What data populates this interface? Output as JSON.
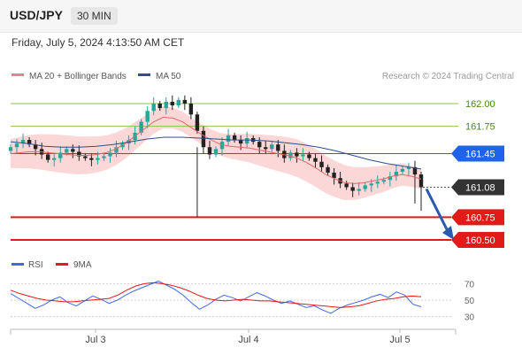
{
  "header": {
    "symbol": "USD/JPY",
    "timeframe": "30 MIN"
  },
  "timestamp": "Friday, July 5, 2024 4:13:50 AM CET",
  "legend": {
    "ma20_label": "MA 20 + Bollinger Bands",
    "ma50_label": "MA 50",
    "ma20_color": "#f08080",
    "ma50_color": "#2e4f8f"
  },
  "credit": "Research © 2024 Trading Central",
  "colors": {
    "up": "#26a69a",
    "down": "#222222",
    "band": "#f9caca",
    "resistance_line": "#8bc34a",
    "pivot_line": "#1e63e9",
    "support_line": "#e11a1a",
    "arrow": "#2a5ab0",
    "rsi": "#4169e1",
    "rsi_ma": "#e11a1a"
  },
  "chart_data": [
    {
      "type": "line",
      "subtype": "candlestick",
      "title": "",
      "x_ticks": [
        "Jul 3",
        "Jul 4",
        "Jul 5"
      ],
      "ylim": [
        160.4,
        162.15
      ],
      "series": [
        {
          "name": "USD/JPY",
          "close_approx": [
            161.52,
            161.56,
            161.6,
            161.55,
            161.5,
            161.44,
            161.38,
            161.4,
            161.46,
            161.5,
            161.47,
            161.42,
            161.4,
            161.38,
            161.4,
            161.42,
            161.46,
            161.52,
            161.56,
            161.6,
            161.68,
            161.8,
            161.92,
            162.0,
            161.95,
            162.02,
            161.98,
            162.04,
            162.0,
            161.88,
            161.7,
            161.52,
            161.44,
            161.5,
            161.58,
            161.65,
            161.6,
            161.56,
            161.62,
            161.58,
            161.52,
            161.5,
            161.55,
            161.48,
            161.4,
            161.46,
            161.42,
            161.44,
            161.4,
            161.36,
            161.3,
            161.24,
            161.18,
            161.12,
            161.08,
            161.04,
            161.06,
            161.1,
            161.12,
            161.14,
            161.16,
            161.2,
            161.25,
            161.28,
            161.3,
            161.22,
            161.08
          ]
        },
        {
          "name": "MA 20",
          "values_approx": [
            161.45,
            161.46,
            161.47,
            161.47,
            161.46,
            161.45,
            161.44,
            161.43,
            161.43,
            161.44,
            161.46,
            161.5,
            161.56,
            161.64,
            161.72,
            161.8,
            161.85,
            161.84,
            161.8,
            161.73,
            161.66,
            161.6,
            161.55,
            161.53,
            161.52,
            161.51,
            161.49,
            161.47,
            161.45,
            161.43,
            161.4,
            161.35,
            161.29,
            161.22,
            161.17,
            161.13,
            161.12,
            161.13,
            161.15,
            161.17,
            161.2,
            161.22,
            161.2,
            161.17
          ]
        },
        {
          "name": "MA 50",
          "values_approx": [
            161.58,
            161.56,
            161.53,
            161.52,
            161.52,
            161.53,
            161.55,
            161.58,
            161.61,
            161.63,
            161.63,
            161.62,
            161.61,
            161.6,
            161.6,
            161.59,
            161.57,
            161.55,
            161.52,
            161.48,
            161.43,
            161.38,
            161.34,
            161.31,
            161.28
          ]
        }
      ],
      "price_levels": [
        {
          "label": "162.00",
          "value": 162.0,
          "role": "resistance"
        },
        {
          "label": "161.75",
          "value": 161.75,
          "role": "resistance"
        },
        {
          "label": "161.45",
          "value": 161.45,
          "role": "pivot"
        },
        {
          "label": "161.08",
          "value": 161.08,
          "role": "last"
        },
        {
          "label": "160.75",
          "value": 160.75,
          "role": "support"
        },
        {
          "label": "160.50",
          "value": 160.5,
          "role": "support"
        }
      ]
    },
    {
      "type": "line",
      "title": "",
      "ylim": [
        20,
        80
      ],
      "y_ticks": [
        "70",
        "50",
        "30"
      ],
      "series": [
        {
          "name": "RSI",
          "values_approx": [
            58,
            52,
            46,
            40,
            44,
            50,
            54,
            47,
            43,
            49,
            55,
            51,
            46,
            50,
            56,
            61,
            65,
            69,
            73,
            68,
            63,
            56,
            47,
            39,
            44,
            51,
            56,
            53,
            49,
            54,
            59,
            55,
            50,
            46,
            49,
            45,
            41,
            43,
            38,
            34,
            40,
            44,
            47,
            50,
            54,
            57,
            53,
            60,
            56,
            45,
            42
          ]
        },
        {
          "name": "9MA",
          "values_approx": [
            62,
            58,
            55,
            52,
            50,
            49,
            48,
            48,
            49,
            50,
            51,
            52,
            56,
            62,
            67,
            70,
            71,
            70,
            68,
            65,
            61,
            56,
            52,
            50,
            49,
            50,
            51,
            50,
            49,
            49,
            48,
            47,
            46,
            45,
            44,
            43,
            42,
            41,
            42,
            43,
            46,
            49,
            51,
            52,
            54,
            55,
            54
          ]
        }
      ]
    }
  ]
}
